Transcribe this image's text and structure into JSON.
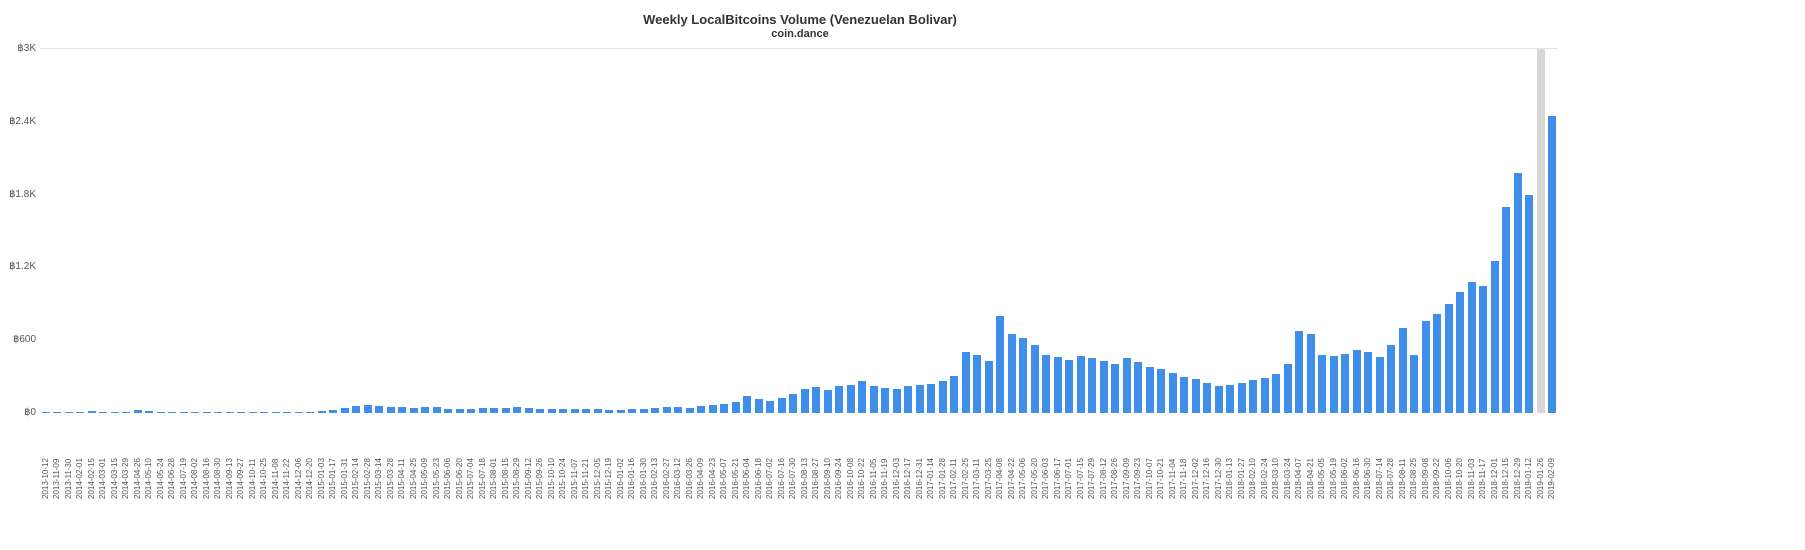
{
  "colors": {
    "bar": "#3f8eea",
    "bar_highlight": "#d7d7d7",
    "axis_text": "#555555",
    "title_text": "#333333",
    "gridline": "#e2e2e2"
  },
  "chart_data": {
    "type": "bar",
    "title": "Weekly LocalBitcoins Volume (Venezuelan Bolivar)",
    "subtitle": "coin.dance",
    "xlabel": "",
    "ylabel": "",
    "currency_prefix": "฿",
    "ylim": [
      0,
      3000
    ],
    "grid": "top-line-only",
    "legend": "none",
    "y_ticks": [
      "฿0",
      "฿600",
      "฿1.2K",
      "฿1.8K",
      "฿2.4K",
      "฿3K"
    ],
    "y_tick_values": [
      0,
      600,
      1200,
      1800,
      2400,
      3000
    ],
    "highlight": {
      "index": 130,
      "style": "gray",
      "note": "bar clipped at top of plot"
    },
    "categories": [
      "2013-10-12",
      "2013-11-09",
      "2013-11-30",
      "2014-02-01",
      "2014-02-15",
      "2014-03-01",
      "2014-03-15",
      "2014-03-29",
      "2014-04-26",
      "2014-05-10",
      "2014-05-24",
      "2014-06-28",
      "2014-07-19",
      "2014-08-02",
      "2014-08-16",
      "2014-08-30",
      "2014-09-13",
      "2014-09-27",
      "2014-10-11",
      "2014-10-25",
      "2014-11-08",
      "2014-11-22",
      "2014-12-06",
      "2014-12-20",
      "2015-01-03",
      "2015-01-17",
      "2015-01-31",
      "2015-02-14",
      "2015-02-28",
      "2015-03-14",
      "2015-03-28",
      "2015-04-11",
      "2015-04-25",
      "2015-05-09",
      "2015-05-23",
      "2015-06-06",
      "2015-06-20",
      "2015-07-04",
      "2015-07-18",
      "2015-08-01",
      "2015-08-15",
      "2015-08-29",
      "2015-09-12",
      "2015-09-26",
      "2015-10-10",
      "2015-10-24",
      "2015-11-07",
      "2015-11-21",
      "2015-12-05",
      "2015-12-19",
      "2016-01-02",
      "2016-01-16",
      "2016-01-30",
      "2016-02-13",
      "2016-02-27",
      "2016-03-12",
      "2016-03-26",
      "2016-04-09",
      "2016-04-23",
      "2016-05-07",
      "2016-05-21",
      "2016-06-04",
      "2016-06-18",
      "2016-07-02",
      "2016-07-16",
      "2016-07-30",
      "2016-08-13",
      "2016-08-27",
      "2016-09-10",
      "2016-09-24",
      "2016-10-08",
      "2016-10-22",
      "2016-11-05",
      "2016-11-19",
      "2016-12-03",
      "2016-12-17",
      "2016-12-31",
      "2017-01-14",
      "2017-01-28",
      "2017-02-11",
      "2017-02-25",
      "2017-03-11",
      "2017-03-25",
      "2017-04-08",
      "2017-04-22",
      "2017-05-06",
      "2017-05-20",
      "2017-06-03",
      "2017-06-17",
      "2017-07-01",
      "2017-07-15",
      "2017-07-29",
      "2017-08-12",
      "2017-08-26",
      "2017-09-09",
      "2017-09-23",
      "2017-10-07",
      "2017-10-21",
      "2017-11-04",
      "2017-11-18",
      "2017-12-02",
      "2017-12-16",
      "2017-12-30",
      "2018-01-13",
      "2018-01-27",
      "2018-02-10",
      "2018-02-24",
      "2018-03-10",
      "2018-03-24",
      "2018-04-07",
      "2018-04-21",
      "2018-05-05",
      "2018-05-19",
      "2018-06-02",
      "2018-06-16",
      "2018-06-30",
      "2018-07-14",
      "2018-07-28",
      "2018-08-11",
      "2018-08-25",
      "2018-09-08",
      "2018-09-22",
      "2018-10-06",
      "2018-10-20",
      "2018-11-03",
      "2018-11-17",
      "2018-12-01",
      "2018-12-15",
      "2018-12-29",
      "2019-01-12",
      "2019-01-26",
      "2019-02-09"
    ],
    "values": [
      2,
      1,
      1,
      6,
      14,
      5,
      4,
      3,
      24,
      16,
      6,
      4,
      5,
      6,
      4,
      3,
      3,
      2,
      3,
      4,
      3,
      4,
      5,
      8,
      14,
      26,
      42,
      58,
      66,
      60,
      52,
      46,
      40,
      46,
      50,
      36,
      30,
      34,
      40,
      44,
      40,
      50,
      40,
      34,
      30,
      34,
      30,
      34,
      30,
      28,
      26,
      30,
      34,
      40,
      46,
      50,
      40,
      56,
      66,
      76,
      92,
      140,
      112,
      100,
      122,
      160,
      200,
      212,
      192,
      220,
      232,
      262,
      222,
      210,
      202,
      222,
      232,
      242,
      262,
      302,
      500,
      480,
      430,
      800,
      650,
      620,
      560,
      480,
      460,
      440,
      470,
      450,
      430,
      400,
      450,
      420,
      380,
      360,
      330,
      300,
      280,
      250,
      220,
      230,
      250,
      270,
      290,
      320,
      400,
      680,
      650,
      480,
      470,
      490,
      520,
      500,
      460,
      560,
      700,
      480,
      760,
      820,
      900,
      1000,
      1080,
      1050,
      1250,
      1700,
      1980,
      1800,
      3000,
      2450
    ]
  }
}
